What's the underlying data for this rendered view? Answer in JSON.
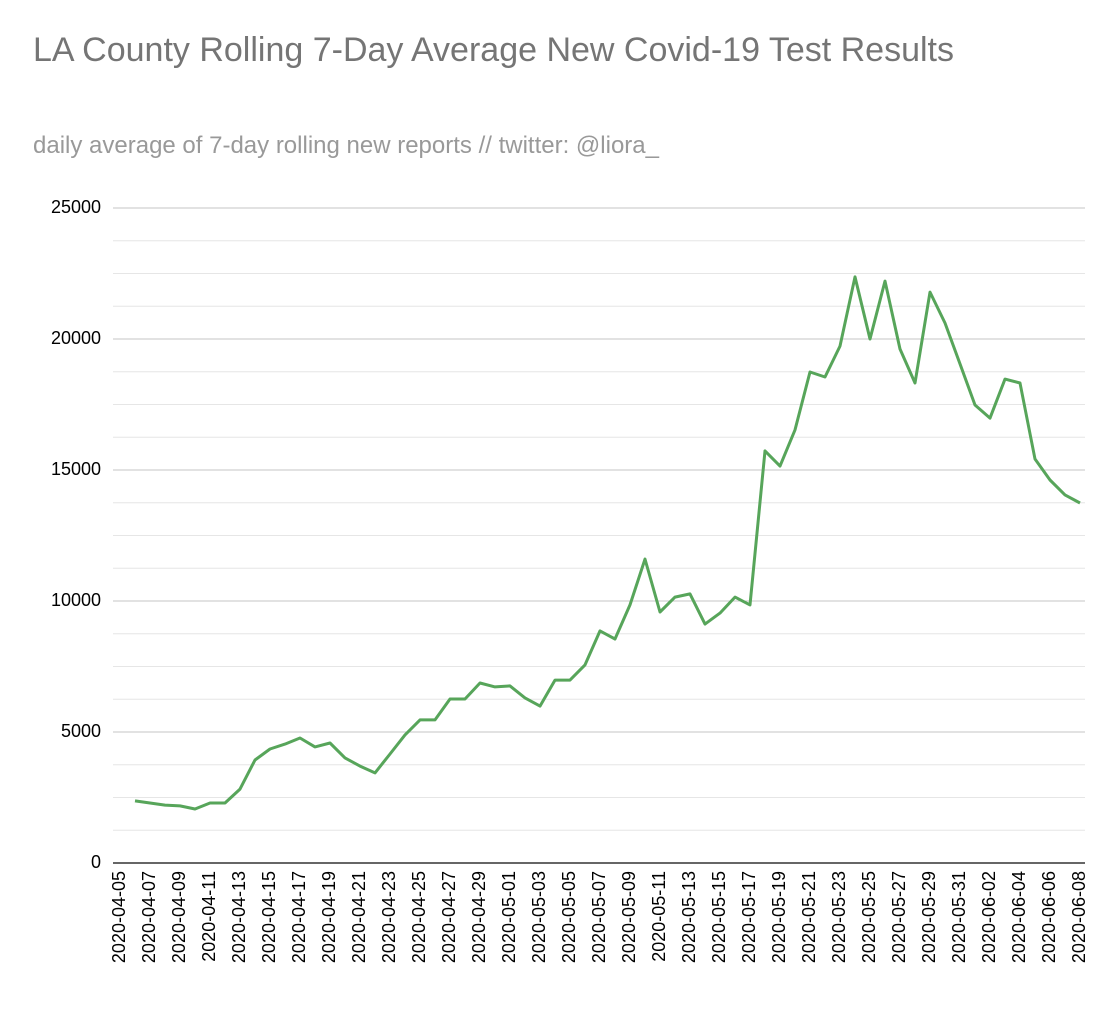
{
  "chart_data": {
    "type": "line",
    "title": "LA County Rolling 7-Day Average New Covid-19 Test Results",
    "subtitle": "daily average of 7-day rolling new reports // twitter: @liora_",
    "categories": [
      "2020-04-05",
      null,
      "2020-04-07",
      null,
      "2020-04-09",
      null,
      "2020-04-11",
      null,
      "2020-04-13",
      null,
      "2020-04-15",
      null,
      "2020-04-17",
      null,
      "2020-04-19",
      null,
      "2020-04-21",
      null,
      "2020-04-23",
      null,
      "2020-04-25",
      null,
      "2020-04-27",
      null,
      "2020-04-29",
      null,
      "2020-05-01",
      null,
      "2020-05-03",
      null,
      "2020-05-05",
      null,
      "2020-05-07",
      null,
      "2020-05-09",
      null,
      "2020-05-11",
      null,
      "2020-05-13",
      null,
      "2020-05-15",
      null,
      "2020-05-17",
      null,
      "2020-05-19",
      null,
      "2020-05-21",
      null,
      "2020-05-23",
      null,
      "2020-05-25",
      null,
      "2020-05-27",
      null,
      "2020-05-29",
      null,
      "2020-05-31",
      null,
      "2020-06-02",
      null,
      "2020-06-04",
      null,
      "2020-06-06",
      null,
      "2020-06-08"
    ],
    "values": [
      null,
      2370,
      2290,
      2210,
      2180,
      2060,
      2290,
      2290,
      2820,
      3930,
      4350,
      4540,
      4770,
      4430,
      4580,
      4010,
      3700,
      3440,
      4160,
      4890,
      5460,
      5460,
      6260,
      6260,
      6870,
      6720,
      6760,
      6300,
      5990,
      6980,
      6980,
      7560,
      8860,
      8550,
      9850,
      11600,
      9580,
      10150,
      10270,
      9120,
      9540,
      10150,
      9850,
      15730,
      15150,
      16530,
      18740,
      18550,
      19730,
      22370,
      20000,
      22210,
      19620,
      18320,
      21790,
      20610,
      19050,
      17480,
      16980,
      18470,
      18320,
      15420,
      14620,
      14050,
      13740
    ],
    "color": "#57a55a",
    "ylim": [
      0,
      25000
    ],
    "yticks": [
      0,
      5000,
      10000,
      15000,
      20000,
      25000
    ],
    "minor_yticks": [
      1250,
      2500,
      3750,
      6250,
      7500,
      8750,
      11250,
      12500,
      13750,
      16250,
      17500,
      18750,
      21250,
      22500,
      23750
    ],
    "grid": true
  }
}
